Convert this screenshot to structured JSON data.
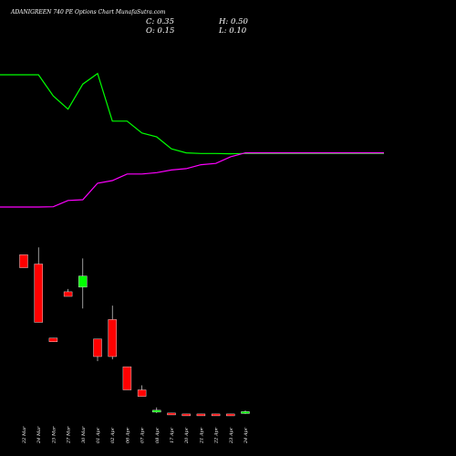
{
  "chart_data": {
    "type": "candlestick",
    "title": "ADANIGREEN 740 PE Options Chart MunafaSutra.com",
    "ohlc_readout": {
      "open_label": "O: 0.15",
      "high_label": "H: 0.50",
      "close_label": "C: 0.35",
      "low_label": "L: 0.10"
    },
    "categories": [
      "22 Mar",
      "24 Mar",
      "25 Mar",
      "27 Mar",
      "30 Mar",
      "01 Apr",
      "02 Apr",
      "06 Apr",
      "07 Apr",
      "08 Apr",
      "17 Apr",
      "20 Apr",
      "21 Apr",
      "22 Apr",
      "23 Apr",
      "24 Apr"
    ],
    "candles": [
      {
        "open": 17.3,
        "high": 17.3,
        "low": 15.9,
        "close": 15.9
      },
      {
        "open": 16.3,
        "high": 18.1,
        "low": 10.0,
        "close": 10.0
      },
      {
        "open": 8.3,
        "high": 8.3,
        "low": 7.9,
        "close": 7.9
      },
      {
        "open": 13.3,
        "high": 13.6,
        "low": 12.8,
        "close": 12.8
      },
      {
        "open": 13.8,
        "high": 16.9,
        "low": 11.5,
        "close": 15.0
      },
      {
        "open": 8.2,
        "high": 8.2,
        "low": 5.8,
        "close": 6.3
      },
      {
        "open": 10.3,
        "high": 11.8,
        "low": 6.0,
        "close": 6.3
      },
      {
        "open": 5.2,
        "high": 5.2,
        "low": 2.7,
        "close": 2.7
      },
      {
        "open": 2.7,
        "high": 3.2,
        "low": 2.0,
        "close": 2.0
      },
      {
        "open": 0.3,
        "high": 0.8,
        "low": 0.2,
        "close": 0.5
      },
      {
        "open": 0.2,
        "high": 0.2,
        "low": 0.0,
        "close": 0.0
      },
      {
        "open": 0.1,
        "high": 0.1,
        "low": 0.0,
        "close": 0.0
      },
      {
        "open": 0.1,
        "high": 0.1,
        "low": 0.0,
        "close": 0.0
      },
      {
        "open": 0.1,
        "high": 0.1,
        "low": 0.0,
        "close": 0.0
      },
      {
        "open": 0.1,
        "high": 0.1,
        "low": -0.1,
        "close": -0.1
      },
      {
        "open": 0.15,
        "high": 0.5,
        "low": 0.1,
        "close": 0.35
      }
    ],
    "price_range": [
      -0.5,
      19.5
    ],
    "overlay_series": [
      {
        "color": "#00ff00",
        "values": [
          100,
          100,
          84,
          74,
          93,
          101,
          65,
          65,
          56,
          53,
          44,
          41,
          40.5,
          40.5,
          40.3,
          40.5
        ]
      },
      {
        "color": "#ff00ff",
        "values": [
          0,
          0,
          0.2,
          5,
          5.5,
          18,
          20,
          25,
          25,
          26,
          28,
          29,
          32,
          33,
          38,
          41
        ]
      }
    ],
    "overlay_range": [
      0,
      100
    ],
    "colors": {
      "up": "#00ff00",
      "down": "#ff0000",
      "background": "#000000",
      "text": "#ffffff"
    },
    "grid": false,
    "legend": "none"
  }
}
